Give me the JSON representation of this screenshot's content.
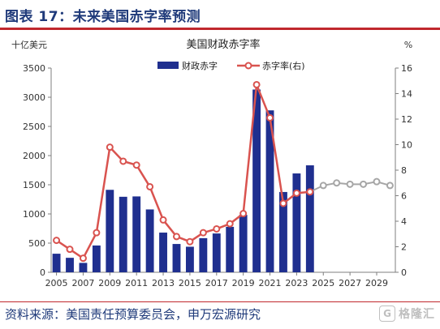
{
  "figure_title": "图表 17：未来美国赤字率预测",
  "source_text": "资料来源：美国责任预算委员会，申万宏源研究",
  "watermark": {
    "icon": "G",
    "text": "格隆汇"
  },
  "colors": {
    "bar": "#1f2f8f",
    "line": "#d9534f",
    "forecast": "#a6a6a6",
    "title": "#1f3a7a",
    "accent": "#c0282d"
  },
  "chart_data": {
    "type": "bar+line",
    "title": "美国财政赤字率",
    "left_unit": "十亿美元",
    "right_unit": "%",
    "x_ticks": [
      "2005",
      "2007",
      "2009",
      "2011",
      "2013",
      "2015",
      "2017",
      "2019",
      "2021",
      "2023",
      "2025",
      "2027",
      "2029"
    ],
    "y_left": {
      "min": 0,
      "max": 3500,
      "step": 500
    },
    "y_right": {
      "min": 0,
      "max": 16,
      "step": 2
    },
    "legend_position": "top",
    "bars": {
      "name": "财政赤字",
      "x": [
        2005,
        2006,
        2007,
        2008,
        2009,
        2010,
        2011,
        2012,
        2013,
        2014,
        2015,
        2016,
        2017,
        2018,
        2019,
        2020,
        2021,
        2022,
        2023,
        2024
      ],
      "values": [
        318,
        248,
        161,
        459,
        1413,
        1294,
        1300,
        1077,
        680,
        485,
        438,
        585,
        665,
        779,
        984,
        3132,
        2775,
        1376,
        1694,
        1833
      ]
    },
    "line": {
      "name": "赤字率(右)",
      "x": [
        2005,
        2006,
        2007,
        2008,
        2009,
        2010,
        2011,
        2012,
        2013,
        2014,
        2015,
        2016,
        2017,
        2018,
        2019,
        2020,
        2021,
        2022,
        2023,
        2024
      ],
      "values": [
        2.5,
        1.8,
        1.1,
        3.1,
        9.8,
        8.7,
        8.4,
        6.7,
        4.1,
        2.8,
        2.4,
        3.1,
        3.4,
        3.8,
        4.6,
        14.7,
        12.1,
        5.4,
        6.2,
        6.3
      ]
    },
    "forecast_line": {
      "x": [
        2024,
        2025,
        2026,
        2027,
        2028,
        2029,
        2030
      ],
      "values": [
        6.3,
        6.8,
        7.0,
        6.9,
        6.9,
        7.1,
        6.8
      ]
    }
  }
}
